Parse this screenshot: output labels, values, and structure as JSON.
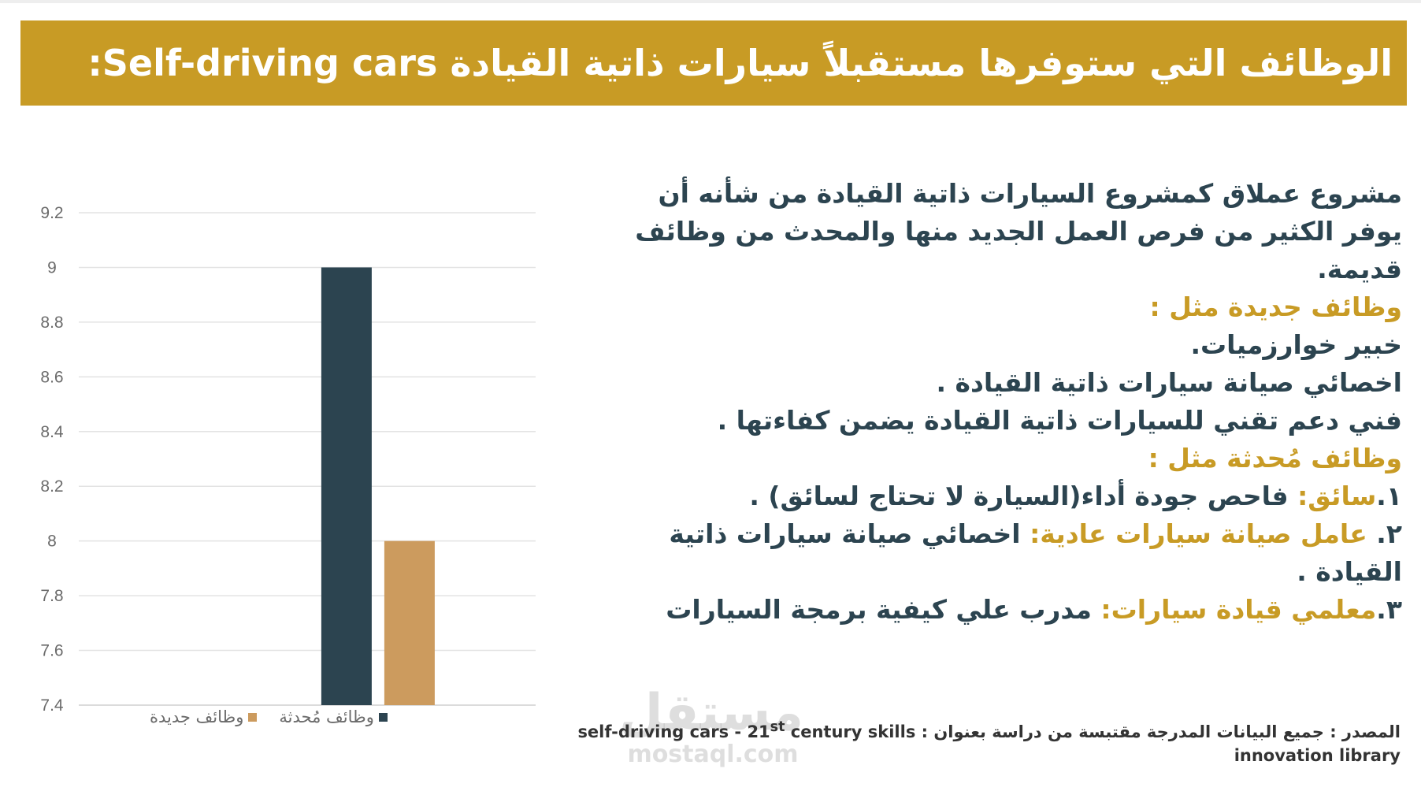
{
  "header": {
    "title": "الوظائف التي ستوفرها مستقبلاً سيارات ذاتية القيادة  Self-driving cars:"
  },
  "chart_data": {
    "type": "bar",
    "categories": [
      ""
    ],
    "series": [
      {
        "name": "وظائف مُحدثة",
        "values": [
          9
        ],
        "color": "#2c4450"
      },
      {
        "name": "وظائف جديدة",
        "values": [
          8
        ],
        "color": "#cc9b5e"
      }
    ],
    "ylim": [
      7.4,
      9.2
    ],
    "yticks": [
      "7.4",
      "7.6",
      "7.8",
      "8",
      "8.2",
      "8.4",
      "8.6",
      "8.8",
      "9",
      "9.2"
    ],
    "grid": true,
    "legend_position": "bottom"
  },
  "legend": {
    "updated": "وظائف مُحدثة",
    "new": "وظائف جديدة"
  },
  "content": {
    "intro": "مشروع عملاق كمشروع السيارات ذاتية القيادة من شأنه أن يوفر الكثير من فرص العمل الجديد منها والمحدث من وظائف قديمة.",
    "new_jobs_heading": "وظائف جديدة مثل :",
    "new_job_1": "خبير خوارزميات.",
    "new_job_2": "اخصائي صيانة سيارات ذاتية القيادة .",
    "new_job_3": "فني دعم تقني للسيارات ذاتية القيادة يضمن كفاءتها .",
    "updated_jobs_heading": "وظائف مُحدثة مثل :",
    "item1_num": "١.",
    "item1_old": "سائق:",
    "item1_new": " فاحص جودة أداء(السيارة لا تحتاج لسائق) .",
    "item2_num": "٢. ",
    "item2_old": "عامل صيانة سيارات عادية:",
    "item2_new": " اخصائي صيانة سيارات ذاتية القيادة .",
    "item3_num": "٣.",
    "item3_old": "معلمي قيادة سيارات:",
    "item3_new": " مدرب علي كيفية برمجة السيارات"
  },
  "source": {
    "prefix": "المصدر : جميع البيانات المدرجة مقتبسة من دراسة بعنوان : ",
    "title_start": "self-driving cars - 21",
    "sup": "st",
    "title_end": " century skills innovation library"
  },
  "watermark": {
    "arabic": "مستقل",
    "english": "mostaql.com"
  }
}
